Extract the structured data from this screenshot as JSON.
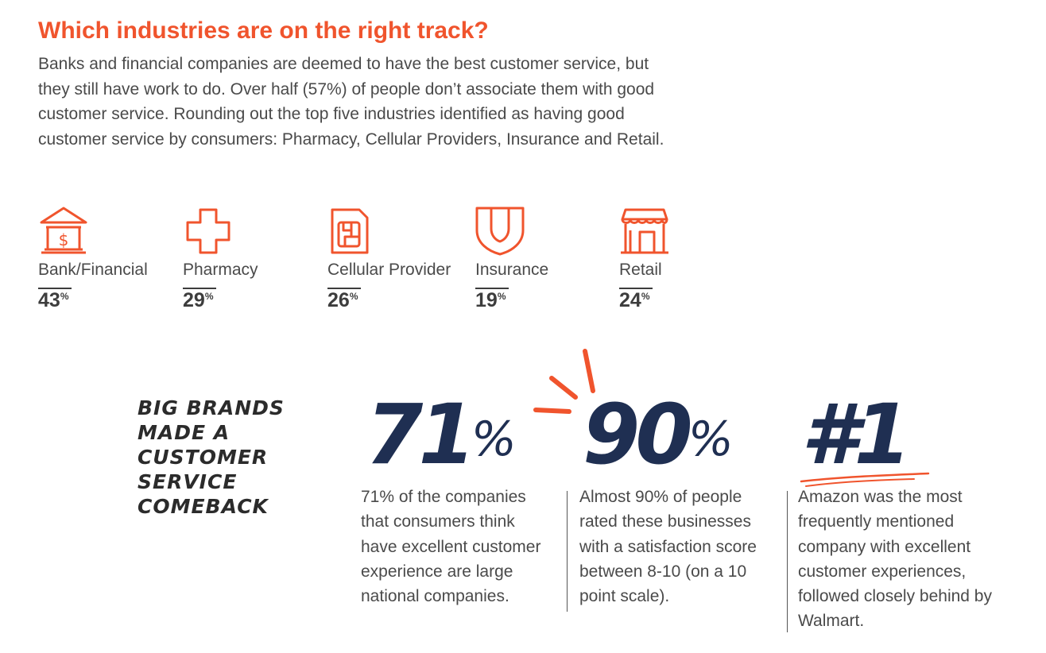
{
  "title": "Which industries are on the right track?",
  "intro": "Banks and financial companies are deemed to have the best customer service, but they still have work to do. Over half (57%) of people don’t associate them with good customer service. Rounding out the top five industries identified as having good customer service by consumers: Pharmacy, Cellular Providers, Insurance and Retail.",
  "accent_color": "#f0542d",
  "dark_color": "#1f2f52",
  "industries": [
    {
      "name": "Bank/Financial",
      "value": "43",
      "unit": "%",
      "icon": "bank-icon"
    },
    {
      "name": "Pharmacy",
      "value": "29",
      "unit": "%",
      "icon": "medical-cross-icon"
    },
    {
      "name": "Cellular Provider",
      "value": "26",
      "unit": "%",
      "icon": "sim-card-icon"
    },
    {
      "name": "Insurance",
      "value": "19",
      "unit": "%",
      "icon": "shield-icon"
    },
    {
      "name": "Retail",
      "value": "24",
      "unit": "%",
      "icon": "storefront-icon"
    }
  ],
  "brands": {
    "heading": "BIG BRANDS MADE A CUSTOMER SERVICE COMEBACK",
    "stats": [
      {
        "big": "71",
        "unit": "%",
        "text": "71% of the companies that consumers think have excellent customer experience are large national companies."
      },
      {
        "big": "90",
        "unit": "%",
        "text": "Almost 90% of people rated these businesses with a satisfaction score between 8-10 (on a 10 point scale)."
      },
      {
        "big": "#1",
        "unit": "",
        "text": "Amazon was the most frequently mentioned company with excellent customer experiences, followed closely behind by Walmart."
      }
    ]
  }
}
